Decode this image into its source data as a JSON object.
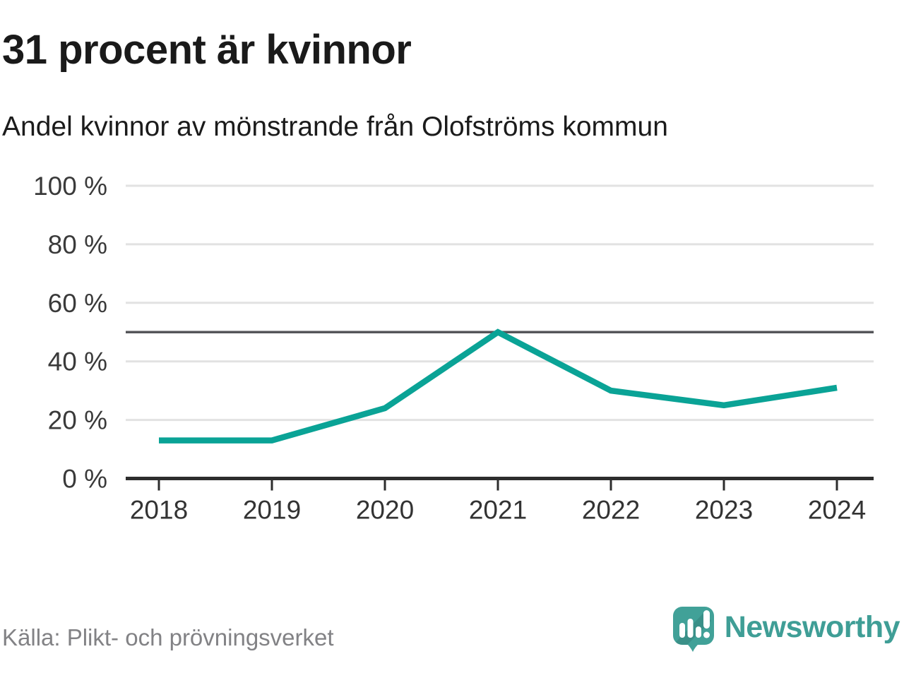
{
  "header": {
    "title": "31 procent är kvinnor",
    "subtitle": "Andel kvinnor av mönstrande från Olofströms kommun"
  },
  "chart_data": {
    "type": "line",
    "title": "31 procent är kvinnor",
    "subtitle": "Andel kvinnor av mönstrande från Olofströms kommun",
    "categories": [
      "2018",
      "2019",
      "2020",
      "2021",
      "2022",
      "2023",
      "2024"
    ],
    "series": [
      {
        "name": "Andel kvinnor av mönstrande",
        "values": [
          13,
          13,
          24,
          50,
          30,
          25,
          31
        ]
      }
    ],
    "unit": "%",
    "ylim": [
      0,
      100
    ],
    "yticks": [
      0,
      20,
      40,
      60,
      80,
      100
    ],
    "ytick_labels": [
      "0 %",
      "20 %",
      "40 %",
      "60 %",
      "80 %",
      "100 %"
    ],
    "reference_line": 50,
    "grid": true,
    "legend": "none",
    "line_color": "#0aa396",
    "reference_line_color": "#55565a",
    "grid_color": "#e2e2e2",
    "axis_color": "#2d2d2d",
    "tick_label_color": "#3a3a3a"
  },
  "footer": {
    "source": "Källa: Plikt- och prövningsverket",
    "logo_text": "Newsworthy",
    "logo_color": "#3f9e96",
    "logo_icon_color": "#41a198"
  }
}
